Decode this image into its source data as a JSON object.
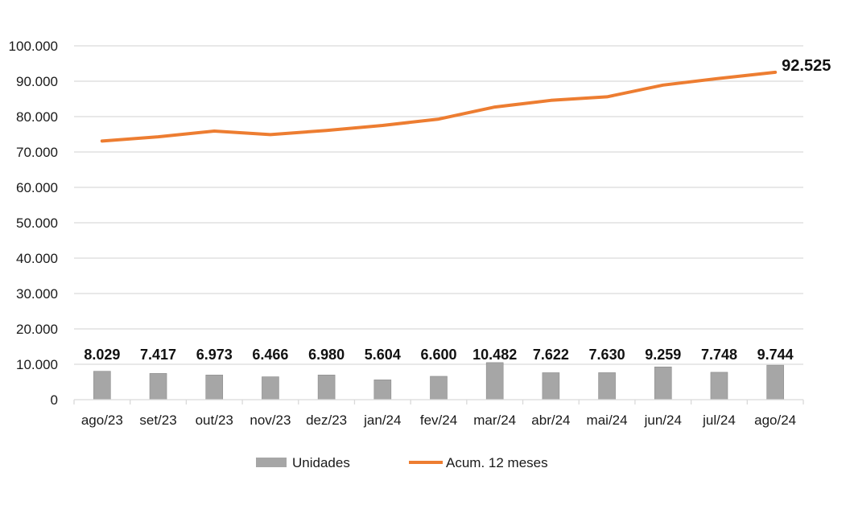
{
  "chart_data": {
    "type": "bar",
    "categories": [
      "ago/23",
      "set/23",
      "out/23",
      "nov/23",
      "dez/23",
      "jan/24",
      "fev/24",
      "mar/24",
      "abr/24",
      "mai/24",
      "jun/24",
      "jul/24",
      "ago/24"
    ],
    "series": [
      {
        "name": "Unidades",
        "type": "bar",
        "color": "#a6a6a6",
        "values": [
          8029,
          7417,
          6973,
          6466,
          6980,
          5604,
          6600,
          10482,
          7622,
          7630,
          9259,
          7748,
          9744
        ],
        "labels": [
          "8.029",
          "7.417",
          "6.973",
          "6.466",
          "6.980",
          "5.604",
          "6.600",
          "10.482",
          "7.622",
          "7.630",
          "9.259",
          "7.748",
          "9.744"
        ]
      },
      {
        "name": "Acum. 12 meses",
        "type": "line",
        "color": "#ed7d31",
        "values": [
          73100,
          74300,
          75900,
          74900,
          76100,
          77500,
          79300,
          82700,
          84600,
          85600,
          88900,
          90800,
          92525
        ],
        "last_label": "92.525"
      }
    ],
    "y_ticks": [
      {
        "value": 0,
        "label": "0"
      },
      {
        "value": 10000,
        "label": "10.000"
      },
      {
        "value": 20000,
        "label": "20.000"
      },
      {
        "value": 30000,
        "label": "30.000"
      },
      {
        "value": 40000,
        "label": "40.000"
      },
      {
        "value": 50000,
        "label": "50.000"
      },
      {
        "value": 60000,
        "label": "60.000"
      },
      {
        "value": 70000,
        "label": "70.000"
      },
      {
        "value": 80000,
        "label": "80.000"
      },
      {
        "value": 90000,
        "label": "90.000"
      },
      {
        "value": 100000,
        "label": "100.000"
      }
    ],
    "ylim": [
      0,
      100000
    ],
    "grid": true,
    "legend_position": "bottom"
  }
}
